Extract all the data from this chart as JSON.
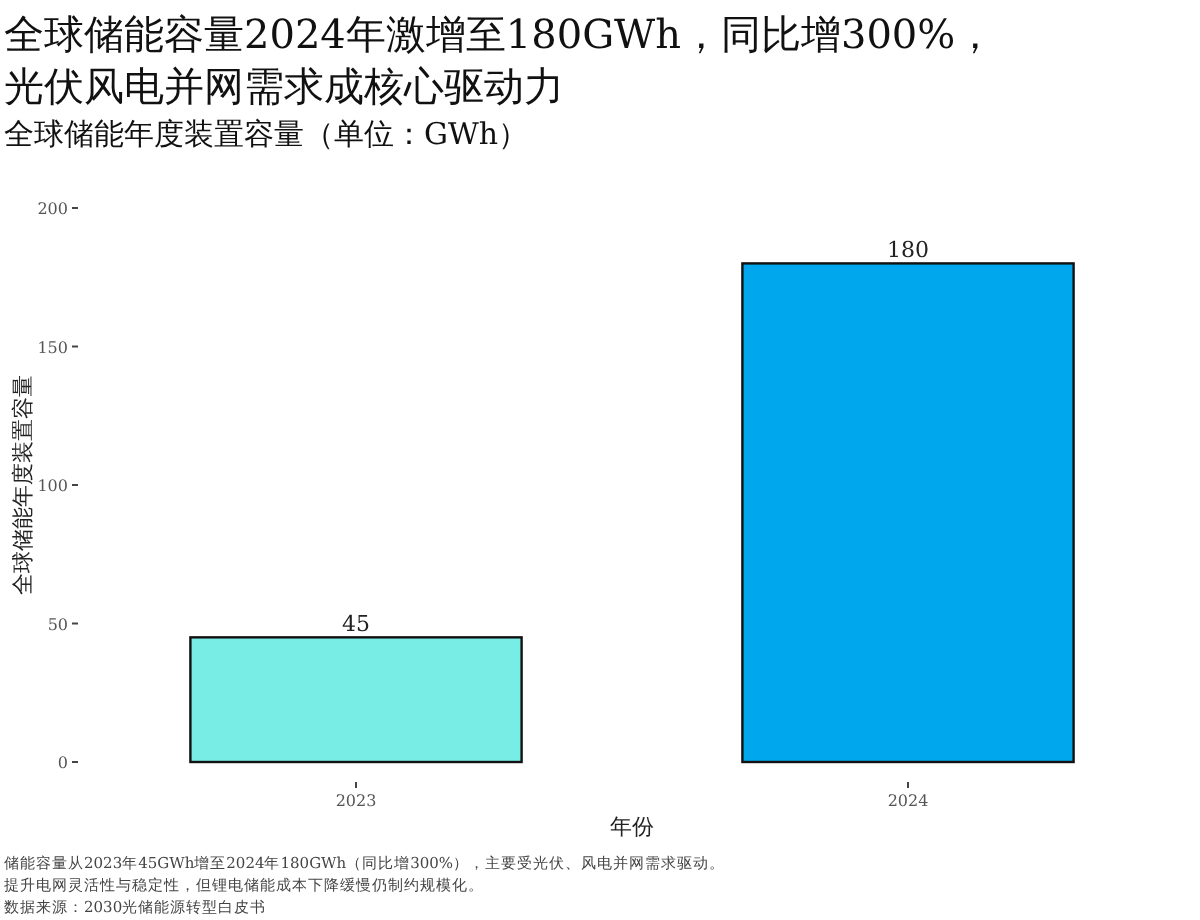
{
  "chart_data": {
    "type": "bar",
    "title": "全球储能容量2024年激增至180GWh，同比增300%，光伏风电并网需求成核心驱动力",
    "subtitle": "全球储能年度装置容量（单位：GWh）",
    "xlabel": "年份",
    "ylabel": "全球储能年度装置容量",
    "categories": [
      "2023",
      "2024"
    ],
    "values": [
      45,
      180
    ],
    "colors": [
      "#78ede5",
      "#00a7ec"
    ],
    "ylim": [
      0,
      200
    ],
    "yticks": [
      0,
      50,
      100,
      150,
      200
    ],
    "data_labels": true,
    "grid": false,
    "annotations": [
      "储能容量从2023年45GWh增至2024年180GWh（同比增300%），主要受光伏、风电并网需求驱动。",
      "提升电网灵活性与稳定性，但锂电储能成本下降缓慢仍制约规模化。",
      "数据来源：2030光储能源转型白皮书"
    ]
  }
}
